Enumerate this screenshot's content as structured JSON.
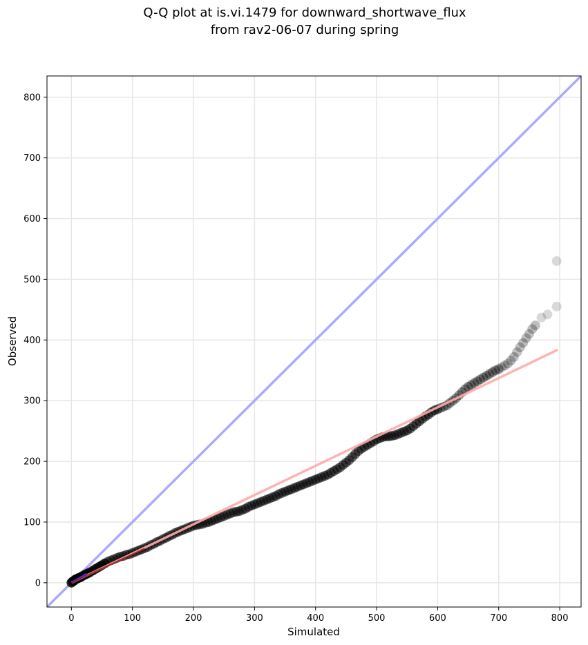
{
  "chart_data": {
    "type": "scatter",
    "title": "Q-Q plot at is.vi.1479 for downward_shortwave_flux\nfrom rav2-06-07 during spring",
    "xlabel": "Simulated",
    "ylabel": "Observed",
    "xlim": [
      -40,
      835
    ],
    "ylim": [
      -40,
      835
    ],
    "x_ticks": [
      0,
      100,
      200,
      300,
      400,
      500,
      600,
      700,
      800
    ],
    "y_ticks": [
      0,
      100,
      200,
      300,
      400,
      500,
      600,
      700,
      800
    ],
    "grid": true,
    "series": [
      {
        "role": "quantiles",
        "marker": "circle",
        "color": "#000000",
        "points": [
          [
            0,
            0
          ],
          [
            2,
            2
          ],
          [
            4,
            3
          ],
          [
            6,
            5
          ],
          [
            8,
            6
          ],
          [
            10,
            7
          ],
          [
            12,
            8
          ],
          [
            15,
            9
          ],
          [
            18,
            11
          ],
          [
            22,
            13
          ],
          [
            26,
            15
          ],
          [
            30,
            17
          ],
          [
            35,
            20
          ],
          [
            40,
            23
          ],
          [
            45,
            26
          ],
          [
            50,
            29
          ],
          [
            55,
            32
          ],
          [
            60,
            35
          ],
          [
            65,
            37
          ],
          [
            70,
            39
          ],
          [
            75,
            41
          ],
          [
            80,
            43
          ],
          [
            85,
            44
          ],
          [
            90,
            46
          ],
          [
            95,
            47
          ],
          [
            100,
            49
          ],
          [
            105,
            51
          ],
          [
            110,
            53
          ],
          [
            115,
            55
          ],
          [
            120,
            57
          ],
          [
            125,
            59
          ],
          [
            130,
            62
          ],
          [
            135,
            64
          ],
          [
            140,
            67
          ],
          [
            145,
            69
          ],
          [
            150,
            72
          ],
          [
            155,
            74
          ],
          [
            160,
            77
          ],
          [
            165,
            79
          ],
          [
            170,
            82
          ],
          [
            175,
            84
          ],
          [
            180,
            86
          ],
          [
            185,
            88
          ],
          [
            190,
            90
          ],
          [
            195,
            92
          ],
          [
            200,
            94
          ],
          [
            205,
            95
          ],
          [
            210,
            96
          ],
          [
            215,
            97
          ],
          [
            220,
            99
          ],
          [
            225,
            100
          ],
          [
            230,
            102
          ],
          [
            235,
            104
          ],
          [
            240,
            106
          ],
          [
            245,
            108
          ],
          [
            250,
            110
          ],
          [
            255,
            112
          ],
          [
            260,
            114
          ],
          [
            265,
            116
          ],
          [
            270,
            117
          ],
          [
            275,
            118
          ],
          [
            280,
            120
          ],
          [
            285,
            122
          ],
          [
            290,
            125
          ],
          [
            295,
            127
          ],
          [
            300,
            129
          ],
          [
            305,
            131
          ],
          [
            310,
            133
          ],
          [
            315,
            135
          ],
          [
            320,
            137
          ],
          [
            325,
            139
          ],
          [
            330,
            141
          ],
          [
            335,
            143
          ],
          [
            340,
            146
          ],
          [
            345,
            148
          ],
          [
            350,
            150
          ],
          [
            355,
            152
          ],
          [
            360,
            154
          ],
          [
            365,
            156
          ],
          [
            370,
            158
          ],
          [
            375,
            160
          ],
          [
            380,
            162
          ],
          [
            385,
            164
          ],
          [
            390,
            166
          ],
          [
            395,
            168
          ],
          [
            400,
            170
          ],
          [
            405,
            172
          ],
          [
            410,
            174
          ],
          [
            415,
            176
          ],
          [
            420,
            178
          ],
          [
            425,
            181
          ],
          [
            430,
            184
          ],
          [
            435,
            187
          ],
          [
            440,
            190
          ],
          [
            445,
            194
          ],
          [
            450,
            198
          ],
          [
            455,
            202
          ],
          [
            460,
            207
          ],
          [
            465,
            212
          ],
          [
            470,
            217
          ],
          [
            475,
            221
          ],
          [
            480,
            224
          ],
          [
            485,
            227
          ],
          [
            490,
            230
          ],
          [
            495,
            233
          ],
          [
            500,
            236
          ],
          [
            505,
            238
          ],
          [
            510,
            240
          ],
          [
            515,
            241
          ],
          [
            520,
            241
          ],
          [
            525,
            242
          ],
          [
            530,
            243
          ],
          [
            535,
            245
          ],
          [
            540,
            247
          ],
          [
            545,
            249
          ],
          [
            550,
            251
          ],
          [
            555,
            254
          ],
          [
            560,
            258
          ],
          [
            565,
            262
          ],
          [
            570,
            266
          ],
          [
            575,
            270
          ],
          [
            580,
            274
          ],
          [
            585,
            277
          ],
          [
            590,
            281
          ],
          [
            595,
            284
          ],
          [
            600,
            286
          ],
          [
            605,
            288
          ],
          [
            610,
            290
          ],
          [
            615,
            292
          ],
          [
            620,
            296
          ],
          [
            625,
            300
          ],
          [
            630,
            304
          ],
          [
            635,
            309
          ],
          [
            640,
            314
          ],
          [
            645,
            319
          ],
          [
            650,
            323
          ],
          [
            655,
            326
          ],
          [
            660,
            329
          ],
          [
            665,
            332
          ],
          [
            670,
            335
          ],
          [
            675,
            338
          ],
          [
            680,
            341
          ],
          [
            685,
            344
          ],
          [
            690,
            347
          ],
          [
            695,
            350
          ],
          [
            700,
            352
          ],
          [
            705,
            355
          ],
          [
            710,
            358
          ],
          [
            715,
            361
          ],
          [
            720,
            366
          ],
          [
            725,
            372
          ],
          [
            730,
            380
          ],
          [
            735,
            388
          ],
          [
            740,
            395
          ],
          [
            745,
            403
          ],
          [
            750,
            410
          ],
          [
            755,
            418
          ],
          [
            760,
            424
          ],
          [
            770,
            437
          ],
          [
            780,
            442
          ],
          [
            795,
            455
          ],
          [
            795,
            530
          ]
        ]
      },
      {
        "role": "one-to-one line",
        "color": "#aaaaff",
        "x": [
          -40,
          835
        ],
        "y": [
          -40,
          835
        ]
      },
      {
        "role": "fit line",
        "color": "#ffaaaa",
        "x": [
          0,
          797
        ],
        "y": [
          0,
          384
        ]
      },
      {
        "role": "low-range line",
        "color": "#2a2aff",
        "x": [
          0,
          25
        ],
        "y": [
          0,
          15
        ]
      },
      {
        "role": "low-range fit",
        "color": "#8b0000",
        "x": [
          0,
          120
        ],
        "y": [
          0,
          56
        ]
      }
    ]
  }
}
